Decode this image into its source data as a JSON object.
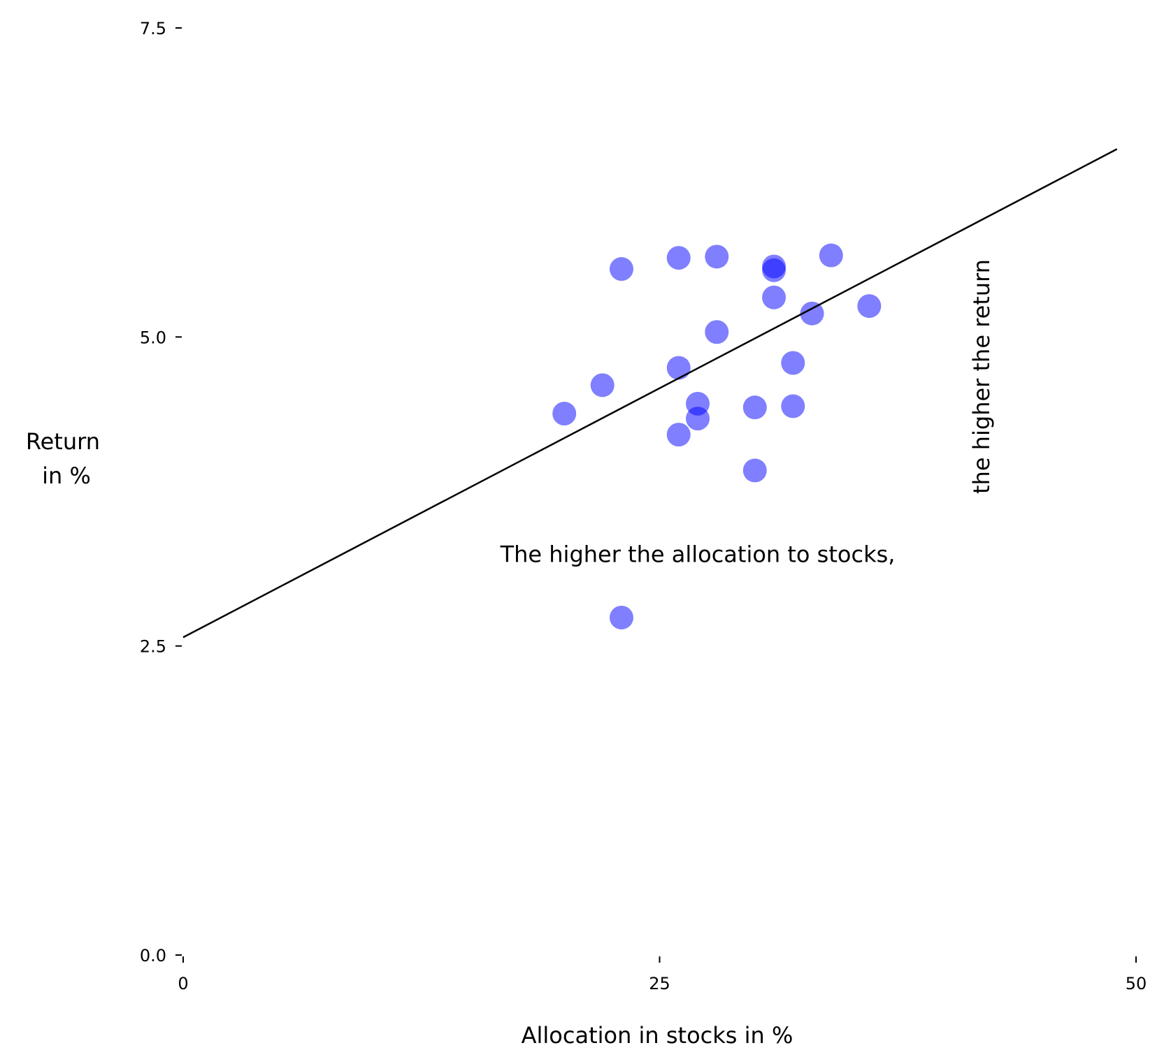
{
  "chart_data": {
    "type": "scatter",
    "title": "",
    "xlabel": "Allocation in stocks in %",
    "ylabel_lines": [
      "Return",
      "in %"
    ],
    "xlim": [
      0,
      50
    ],
    "ylim": [
      0,
      7.5
    ],
    "x_ticks": [
      0,
      25,
      50
    ],
    "x_tick_labels": [
      "0",
      "25",
      "50"
    ],
    "y_ticks": [
      0,
      2.5,
      5,
      7.5
    ],
    "y_tick_labels": [
      "0.0",
      "2.5",
      "5.0",
      "7.5"
    ],
    "grid": false,
    "point_color": "#0000ff",
    "point_opacity": 0.5,
    "line_color": "#000000",
    "points": [
      {
        "x": 23,
        "y": 5.55
      },
      {
        "x": 26,
        "y": 5.64
      },
      {
        "x": 28,
        "y": 5.65
      },
      {
        "x": 31,
        "y": 5.57
      },
      {
        "x": 31,
        "y": 5.54
      },
      {
        "x": 34,
        "y": 5.66
      },
      {
        "x": 31,
        "y": 5.32
      },
      {
        "x": 33,
        "y": 5.19
      },
      {
        "x": 36,
        "y": 5.25
      },
      {
        "x": 28,
        "y": 5.04
      },
      {
        "x": 26,
        "y": 4.75
      },
      {
        "x": 32,
        "y": 4.79
      },
      {
        "x": 22,
        "y": 4.61
      },
      {
        "x": 27,
        "y": 4.46
      },
      {
        "x": 30,
        "y": 4.43
      },
      {
        "x": 32,
        "y": 4.44
      },
      {
        "x": 20,
        "y": 4.38
      },
      {
        "x": 27,
        "y": 4.34
      },
      {
        "x": 26,
        "y": 4.21
      },
      {
        "x": 30,
        "y": 3.92
      },
      {
        "x": 23,
        "y": 2.73
      }
    ],
    "trend_line": {
      "x": [
        0,
        49
      ],
      "y": [
        2.57,
        6.52
      ]
    },
    "annotations": [
      {
        "text": "The higher the allocation to stocks,",
        "x": 27,
        "y": 3.18,
        "rotation": 0
      },
      {
        "text": "the higher the return",
        "x": 42.3,
        "y": 4.68,
        "rotation": -90
      }
    ]
  }
}
